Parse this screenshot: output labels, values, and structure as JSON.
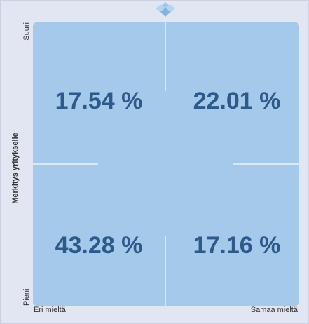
{
  "axis": {
    "y_label": "Merkitys yritykselle",
    "y_top": "Suuri",
    "y_bottom": "Pieni",
    "x_left": "Eri mieltä",
    "x_right": "Samaa mieltä"
  },
  "quadrants": [
    {
      "label": "17.54 %"
    },
    {
      "label": "22.01 %"
    },
    {
      "label": "43.28 %"
    },
    {
      "label": "17.16 %"
    }
  ]
}
